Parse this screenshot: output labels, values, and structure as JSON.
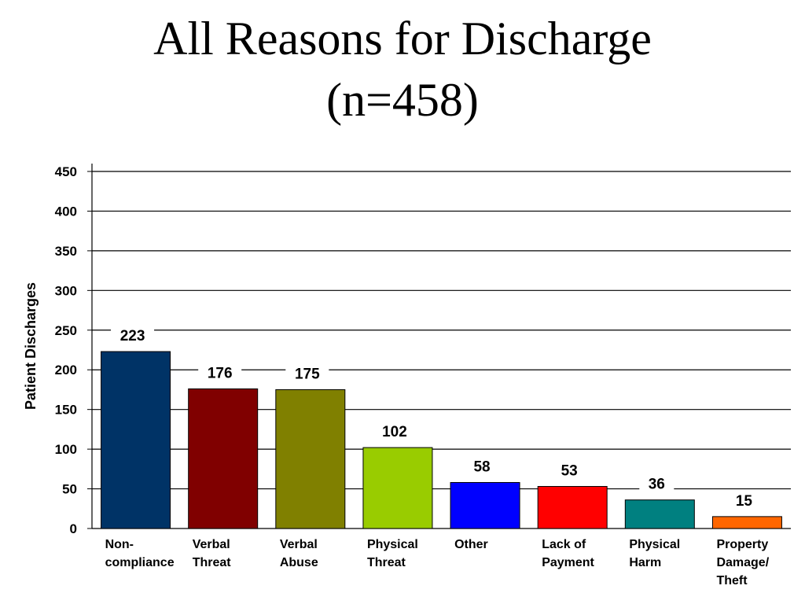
{
  "title": {
    "line1": "All Reasons for Discharge",
    "line2": "(n=458)"
  },
  "chart_data": {
    "type": "bar",
    "title": "All Reasons for Discharge (n=458)",
    "xlabel": "",
    "ylabel": "Patient Discharges",
    "ylim": [
      0,
      450
    ],
    "yticks": [
      0,
      50,
      100,
      150,
      200,
      250,
      300,
      350,
      400,
      450
    ],
    "grid": true,
    "legend": "none",
    "categories": [
      [
        "Non-",
        "compliance"
      ],
      [
        "Verbal",
        "Threat"
      ],
      [
        "Verbal",
        "Abuse"
      ],
      [
        "Physical",
        "Threat"
      ],
      [
        "Other"
      ],
      [
        "Lack of",
        "Payment"
      ],
      [
        "Physical",
        "Harm"
      ],
      [
        "Property",
        "Damage/",
        "Theft"
      ]
    ],
    "values": [
      223,
      176,
      175,
      102,
      58,
      53,
      36,
      15
    ],
    "colors": [
      "#003366",
      "#800000",
      "#808000",
      "#99CC00",
      "#0000FF",
      "#FF0000",
      "#008080",
      "#FF6600"
    ]
  }
}
